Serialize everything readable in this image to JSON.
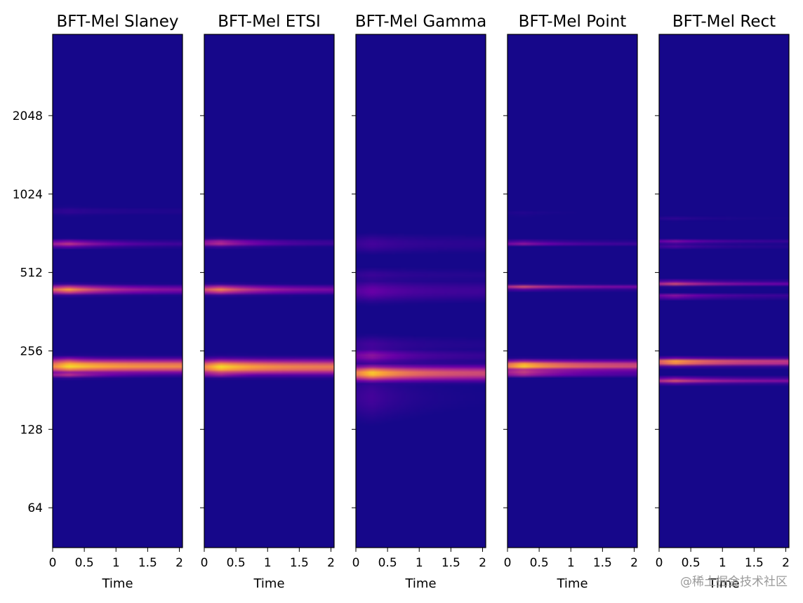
{
  "figure": {
    "watermark": "@稀土掘金技术社区"
  },
  "chart_data": {
    "type": "heatmap",
    "colormap": "plasma",
    "colormap_stops": [
      "#0d0887",
      "#6a00a8",
      "#b12a90",
      "#e16462",
      "#fca636",
      "#f0f921"
    ],
    "shared_y": true,
    "ylim": [
      45,
      4200
    ],
    "yscale": "log2",
    "ytick_labels": [
      "64",
      "128",
      "256",
      "512",
      "1024",
      "2048"
    ],
    "ytick_values": [
      64,
      128,
      256,
      512,
      1024,
      2048
    ],
    "xlim": [
      0,
      2.05
    ],
    "xtick_labels": [
      "0",
      "0.5",
      "1",
      "1.5",
      "2"
    ],
    "xtick_values": [
      0,
      0.5,
      1,
      1.5,
      2
    ],
    "xlabel": "Time",
    "panels": [
      {
        "title": "BFT-Mel Slaney",
        "bands": [
          {
            "freq": 224,
            "peak": 0.95,
            "decay": 0.75,
            "width": 0.055
          },
          {
            "freq": 234,
            "peak": 0.55,
            "decay": 0.3,
            "width": 0.03
          },
          {
            "freq": 208,
            "peak": 0.45,
            "decay": 0.2,
            "width": 0.025
          },
          {
            "freq": 440,
            "peak": 0.8,
            "decay": 0.3,
            "width": 0.035
          },
          {
            "freq": 660,
            "peak": 0.45,
            "decay": 0.2,
            "width": 0.03
          },
          {
            "freq": 880,
            "peak": 0.08,
            "decay": 0.5,
            "width": 0.04
          }
        ]
      },
      {
        "title": "BFT-Mel ETSI",
        "bands": [
          {
            "freq": 222,
            "peak": 0.95,
            "decay": 0.7,
            "width": 0.06
          },
          {
            "freq": 210,
            "peak": 0.5,
            "decay": 0.25,
            "width": 0.025
          },
          {
            "freq": 440,
            "peak": 0.72,
            "decay": 0.3,
            "width": 0.035
          },
          {
            "freq": 665,
            "peak": 0.45,
            "decay": 0.2,
            "width": 0.03
          }
        ]
      },
      {
        "title": "BFT-Mel Gamma",
        "bands": [
          {
            "freq": 210,
            "peak": 0.92,
            "decay": 0.55,
            "width": 0.06
          },
          {
            "freq": 245,
            "peak": 0.3,
            "decay": 0.25,
            "width": 0.06
          },
          {
            "freq": 270,
            "peak": 0.12,
            "decay": 0.35,
            "width": 0.08
          },
          {
            "freq": 435,
            "peak": 0.2,
            "decay": 0.5,
            "width": 0.09
          },
          {
            "freq": 500,
            "peak": 0.1,
            "decay": 0.5,
            "width": 0.06
          },
          {
            "freq": 660,
            "peak": 0.12,
            "decay": 0.5,
            "width": 0.08
          },
          {
            "freq": 170,
            "peak": 0.12,
            "decay": 0.15,
            "width": 0.2
          }
        ]
      },
      {
        "title": "BFT-Mel Point",
        "bands": [
          {
            "freq": 225,
            "peak": 0.95,
            "decay": 0.55,
            "width": 0.04
          },
          {
            "freq": 210,
            "peak": 0.55,
            "decay": 0.3,
            "width": 0.025
          },
          {
            "freq": 450,
            "peak": 0.55,
            "decay": 0.4,
            "width": 0.02
          },
          {
            "freq": 665,
            "peak": 0.45,
            "decay": 0.3,
            "width": 0.015
          },
          {
            "freq": 860,
            "peak": 0.08,
            "decay": 0.3,
            "width": 0.015
          }
        ]
      },
      {
        "title": "BFT-Mel Rect",
        "bands": [
          {
            "freq": 232,
            "peak": 0.9,
            "decay": 0.55,
            "width": 0.03
          },
          {
            "freq": 197,
            "peak": 0.55,
            "decay": 0.45,
            "width": 0.025
          },
          {
            "freq": 465,
            "peak": 0.55,
            "decay": 0.35,
            "width": 0.02
          },
          {
            "freq": 415,
            "peak": 0.35,
            "decay": 0.3,
            "width": 0.02
          },
          {
            "freq": 670,
            "peak": 0.35,
            "decay": 0.3,
            "width": 0.015
          },
          {
            "freq": 640,
            "peak": 0.15,
            "decay": 0.3,
            "width": 0.015
          },
          {
            "freq": 820,
            "peak": 0.1,
            "decay": 0.3,
            "width": 0.015
          }
        ]
      }
    ]
  }
}
